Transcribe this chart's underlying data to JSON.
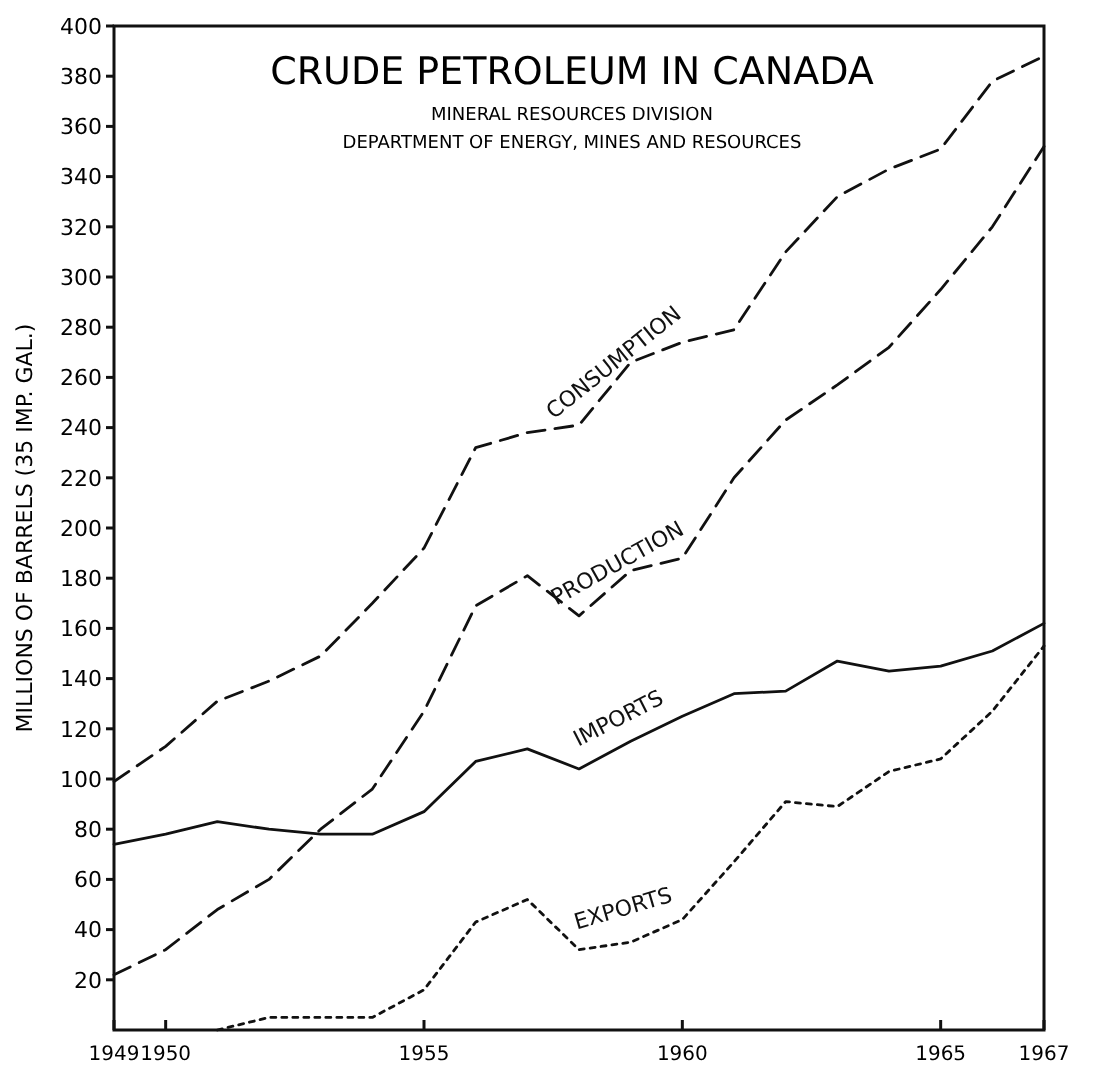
{
  "chart_data": {
    "type": "line",
    "title": "CRUDE PETROLEUM IN CANADA",
    "subtitle": "MINERAL RESOURCES DIVISION",
    "annotations": [
      "DEPARTMENT OF ENERGY, MINES AND RESOURCES"
    ],
    "ylabel": "MILLIONS OF BARRELS (35 IMP. GAL.)",
    "x": [
      1949,
      1950,
      1951,
      1952,
      1953,
      1954,
      1955,
      1956,
      1957,
      1958,
      1959,
      1960,
      1961,
      1962,
      1963,
      1964,
      1965,
      1966,
      1967
    ],
    "series": [
      {
        "name": "CONSUMPTION",
        "color": "#111111",
        "line_style": "dashed",
        "values": [
          99,
          113,
          131,
          139,
          149,
          170,
          192,
          232,
          238,
          241,
          266,
          274,
          279,
          310,
          332,
          343,
          351,
          378,
          388
        ]
      },
      {
        "name": "PRODUCTION",
        "color": "#111111",
        "line_style": "dashed",
        "values": [
          22,
          32,
          48,
          60,
          80,
          96,
          127,
          169,
          181,
          165,
          183,
          188,
          220,
          243,
          257,
          272,
          295,
          320,
          352
        ]
      },
      {
        "name": "IMPORTS",
        "color": "#111111",
        "line_style": "solid",
        "values": [
          74,
          78,
          83,
          80,
          78,
          78,
          87,
          107,
          112,
          104,
          115,
          125,
          134,
          135,
          147,
          143,
          145,
          151,
          162
        ]
      },
      {
        "name": "EXPORTS",
        "color": "#111111",
        "line_style": "dotted",
        "values": [
          null,
          null,
          0,
          5,
          5,
          5,
          16,
          43,
          52,
          32,
          35,
          44,
          67,
          91,
          89,
          103,
          108,
          127,
          153
        ]
      }
    ],
    "xlim": [
      1949,
      1967
    ],
    "xticks": [
      1949,
      1950,
      1955,
      1960,
      1965,
      1967
    ],
    "ylim": [
      0,
      400
    ],
    "yticks": [
      20,
      40,
      60,
      80,
      100,
      120,
      140,
      160,
      180,
      200,
      220,
      240,
      260,
      280,
      300,
      320,
      340,
      360,
      380,
      400
    ],
    "grid": false,
    "marker": "none"
  }
}
